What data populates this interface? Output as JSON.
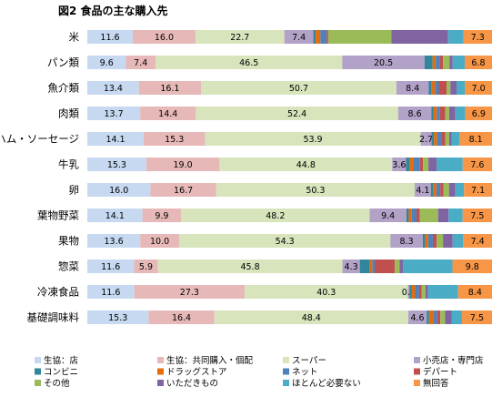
{
  "chart_data": {
    "type": "bar",
    "orientation": "horizontal",
    "stacked": true,
    "normalized": true,
    "title": "図2 食品の主な購入先",
    "xlim": [
      0,
      100
    ],
    "grid": false,
    "legend_position": "bottom",
    "categories": [
      "米",
      "パン類",
      "魚介類",
      "肉類",
      "ハム・ソーセージ",
      "牛乳",
      "卵",
      "葉物野菜",
      "果物",
      "惣菜",
      "冷凍食品",
      "基礎調味料"
    ],
    "series": [
      {
        "name": "生協：店",
        "color": "#c6d9f1",
        "values": [
          11.6,
          9.6,
          13.4,
          13.7,
          14.1,
          15.3,
          16.0,
          14.1,
          13.6,
          11.6,
          11.6,
          15.3
        ],
        "labels": [
          "11.6",
          "9.6",
          "13.4",
          "13.7",
          "14.1",
          "15.3",
          "16.0",
          "14.1",
          "13.6",
          "11.6",
          "11.6",
          "15.3"
        ]
      },
      {
        "name": "生協：共同購入・個配",
        "color": "#e6b9b8",
        "values": [
          16.0,
          7.4,
          16.1,
          14.4,
          15.3,
          19.0,
          16.7,
          9.9,
          10.0,
          5.9,
          27.3,
          16.4
        ],
        "labels": [
          "16.0",
          "7.4",
          "16.1",
          "14.4",
          "15.3",
          "19.0",
          "16.7",
          "9.9",
          "10.0",
          "5.9",
          "27.3",
          "16.4"
        ]
      },
      {
        "name": "スーパー",
        "color": "#d7e4bc",
        "values": [
          22.7,
          46.5,
          50.7,
          52.4,
          53.9,
          44.8,
          50.3,
          48.2,
          54.3,
          45.8,
          40.3,
          48.4
        ],
        "labels": [
          "22.7",
          "46.5",
          "50.7",
          "52.4",
          "53.9",
          "44.8",
          "50.3",
          "48.2",
          "54.3",
          "45.8",
          "40.3",
          "48.4"
        ]
      },
      {
        "name": "小売店・専門店",
        "color": "#b3a2c7",
        "values": [
          7.4,
          20.5,
          8.4,
          8.6,
          2.7,
          3.6,
          4.1,
          9.4,
          8.3,
          4.3,
          0.4,
          4.6
        ],
        "labels": [
          "7.4",
          "20.5",
          "8.4",
          "8.6",
          "2.7",
          "3.6",
          "4.1",
          "9.4",
          "8.3",
          "4.3",
          "0.4",
          "4.6"
        ]
      },
      {
        "name": "コンビニ",
        "color": "#31859c",
        "values": [
          0.6,
          2.0,
          0.6,
          0.6,
          0.6,
          1.0,
          0.6,
          0.6,
          0.6,
          2.5,
          0.6,
          0.6
        ],
        "labels": [
          "",
          "",
          "",
          "",
          "",
          "",
          "",
          "",
          "",
          "",
          "",
          ""
        ]
      },
      {
        "name": "ドラッグストア",
        "color": "#e46c0a",
        "values": [
          1.2,
          0.8,
          1.0,
          0.8,
          0.8,
          1.0,
          0.8,
          0.8,
          0.8,
          0.6,
          0.8,
          1.0
        ],
        "labels": [
          "",
          "",
          "",
          "",
          "",
          "",
          "",
          "",
          "",
          "",
          "",
          ""
        ]
      },
      {
        "name": "ネット",
        "color": "#4f81bd",
        "values": [
          1.6,
          1.0,
          1.0,
          0.8,
          1.0,
          1.6,
          1.0,
          1.2,
          1.2,
          0.6,
          1.0,
          1.0
        ],
        "labels": [
          "",
          "",
          "",
          "",
          "",
          "",
          "",
          "",
          "",
          "",
          "",
          ""
        ]
      },
      {
        "name": "デパート",
        "color": "#c0504d",
        "values": [
          0.4,
          0.8,
          2.0,
          1.4,
          1.0,
          0.8,
          0.8,
          0.8,
          1.0,
          5.0,
          0.6,
          0.8
        ],
        "labels": [
          "",
          "",
          "",
          "",
          "",
          "",
          "",
          "",
          "",
          "",
          "",
          ""
        ]
      },
      {
        "name": "その他",
        "color": "#9bbb59",
        "values": [
          16.1,
          1.6,
          1.0,
          1.0,
          1.0,
          1.4,
          1.4,
          4.7,
          1.6,
          1.2,
          1.0,
          1.2
        ],
        "labels": [
          "",
          "",
          "",
          "",
          "",
          "",
          "",
          "",
          "",
          "",
          "",
          ""
        ]
      },
      {
        "name": "いただきもの",
        "color": "#8064a2",
        "values": [
          14.5,
          0.8,
          1.6,
          1.6,
          0.6,
          2.1,
          1.6,
          2.7,
          2.5,
          0.8,
          0.6,
          1.6
        ],
        "labels": [
          "",
          "",
          "",
          "",
          "",
          "",
          "",
          "",
          "",
          "",
          "",
          ""
        ]
      },
      {
        "name": "ほとんど必要ない",
        "color": "#4bacc6",
        "values": [
          3.9,
          3.0,
          2.2,
          2.6,
          2.0,
          6.8,
          2.2,
          3.6,
          2.7,
          12.3,
          7.4,
          2.6
        ],
        "labels": [
          "",
          "",
          "",
          "",
          "",
          "",
          "",
          "",
          "",
          "",
          "",
          ""
        ]
      },
      {
        "name": "無回答",
        "color": "#f79646",
        "values": [
          7.3,
          6.8,
          7.0,
          6.9,
          8.1,
          7.6,
          7.1,
          7.5,
          7.4,
          9.8,
          8.4,
          7.5
        ],
        "labels": [
          "7.3",
          "6.8",
          "7.0",
          "6.9",
          "8.1",
          "7.6",
          "7.1",
          "7.5",
          "7.4",
          "9.8",
          "8.4",
          "7.5"
        ]
      }
    ]
  }
}
